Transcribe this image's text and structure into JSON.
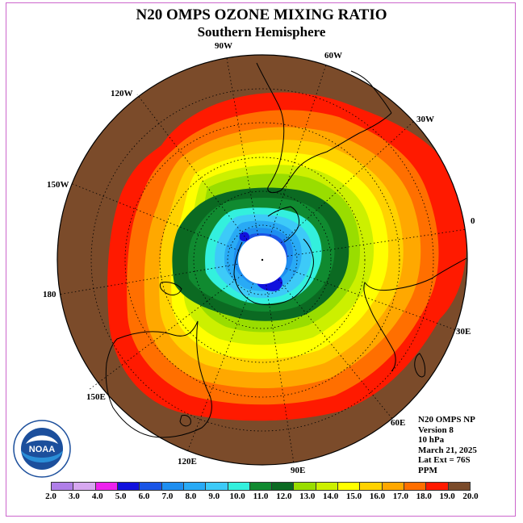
{
  "title": "N20 OMPS OZONE MIXING RATIO",
  "subtitle": "Southern Hemisphere",
  "longitude_labels": {
    "lon_90w": "90W",
    "lon_60w": "60W",
    "lon_30w": "30W",
    "lon_0": "0",
    "lon_30e": "30E",
    "lon_60e": "60E",
    "lon_90e": "90E",
    "lon_120e": "120E",
    "lon_150e": "150E",
    "lon_180": "180",
    "lon_150w": "150W",
    "lon_120w": "120W"
  },
  "info": {
    "instrument": "N20 OMPS NP",
    "version": "Version 8",
    "level": "10 hPa",
    "date": "March 21, 2025",
    "lat_ext": "Lat Ext = 76S",
    "units": "PPM"
  },
  "logo_text": "NOAA",
  "colorbar": {
    "ticks": [
      "2.0",
      "3.0",
      "4.0",
      "5.0",
      "6.0",
      "7.0",
      "8.0",
      "9.0",
      "10.0",
      "11.0",
      "12.0",
      "13.0",
      "14.0",
      "15.0",
      "16.0",
      "17.0",
      "18.0",
      "19.0",
      "20.0"
    ],
    "colors": [
      "#b07fe8",
      "#d7a8f0",
      "#ee22ee",
      "#1111dd",
      "#1a55e6",
      "#1e8ef0",
      "#29aaf5",
      "#3dcaf8",
      "#33f0dd",
      "#108a30",
      "#0b6a22",
      "#99dd00",
      "#ccf000",
      "#ffff00",
      "#ffd200",
      "#ffa800",
      "#ff6f00",
      "#ff1a00",
      "#7b4b2a"
    ]
  },
  "field_colors": {
    "brown": "#7b4b2a",
    "red": "#ff1a00",
    "orange_red": "#ff6f00",
    "orange": "#ffa800",
    "yellow_orange": "#ffd200",
    "yellow": "#ffff00",
    "lime": "#ccf000",
    "yellow_green": "#99dd00",
    "dark_green": "#0b6a22",
    "green": "#108a30",
    "teal": "#33f0dd",
    "cyan": "#3dcaf8",
    "sky": "#29aaf5",
    "blue": "#1e8ef0",
    "mid_blue": "#1a55e6",
    "deep_blue": "#1111dd"
  }
}
